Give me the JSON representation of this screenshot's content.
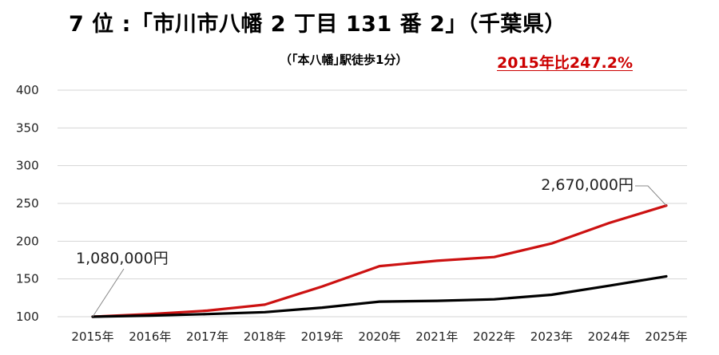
{
  "title": "7 位 :「市川市八幡 2 丁目 131 番 2」（千葉県）",
  "subtitle": "（｢本八幡｣駅徒歩1分）",
  "ratio_label": "2015年比247.2%",
  "colors": {
    "red_series": "#cc1111",
    "black_series": "#000000",
    "grid": "#d4d4d4",
    "ratio_text": "#cc0000"
  },
  "chart_data": {
    "type": "line",
    "categories": [
      "2015年",
      "2016年",
      "2017年",
      "2018年",
      "2019年",
      "2020年",
      "2021年",
      "2022年",
      "2023年",
      "2024年",
      "2025年"
    ],
    "series": [
      {
        "color": "red",
        "values": [
          100,
          103.5,
          108,
          116,
          140,
          167,
          174,
          179,
          197,
          224,
          247.2
        ]
      },
      {
        "color": "black",
        "values": [
          100,
          101.5,
          103.5,
          106,
          112,
          120,
          121,
          123,
          129,
          141,
          153.5
        ]
      }
    ],
    "ylim": [
      100,
      400
    ],
    "yticks": [
      100,
      150,
      200,
      250,
      300,
      350,
      400
    ],
    "grid": true,
    "annotations": [
      {
        "text": "1,080,000円",
        "category": "2015年",
        "series": 0
      },
      {
        "text": "2,670,000円",
        "category": "2025年",
        "series": 0
      }
    ]
  }
}
